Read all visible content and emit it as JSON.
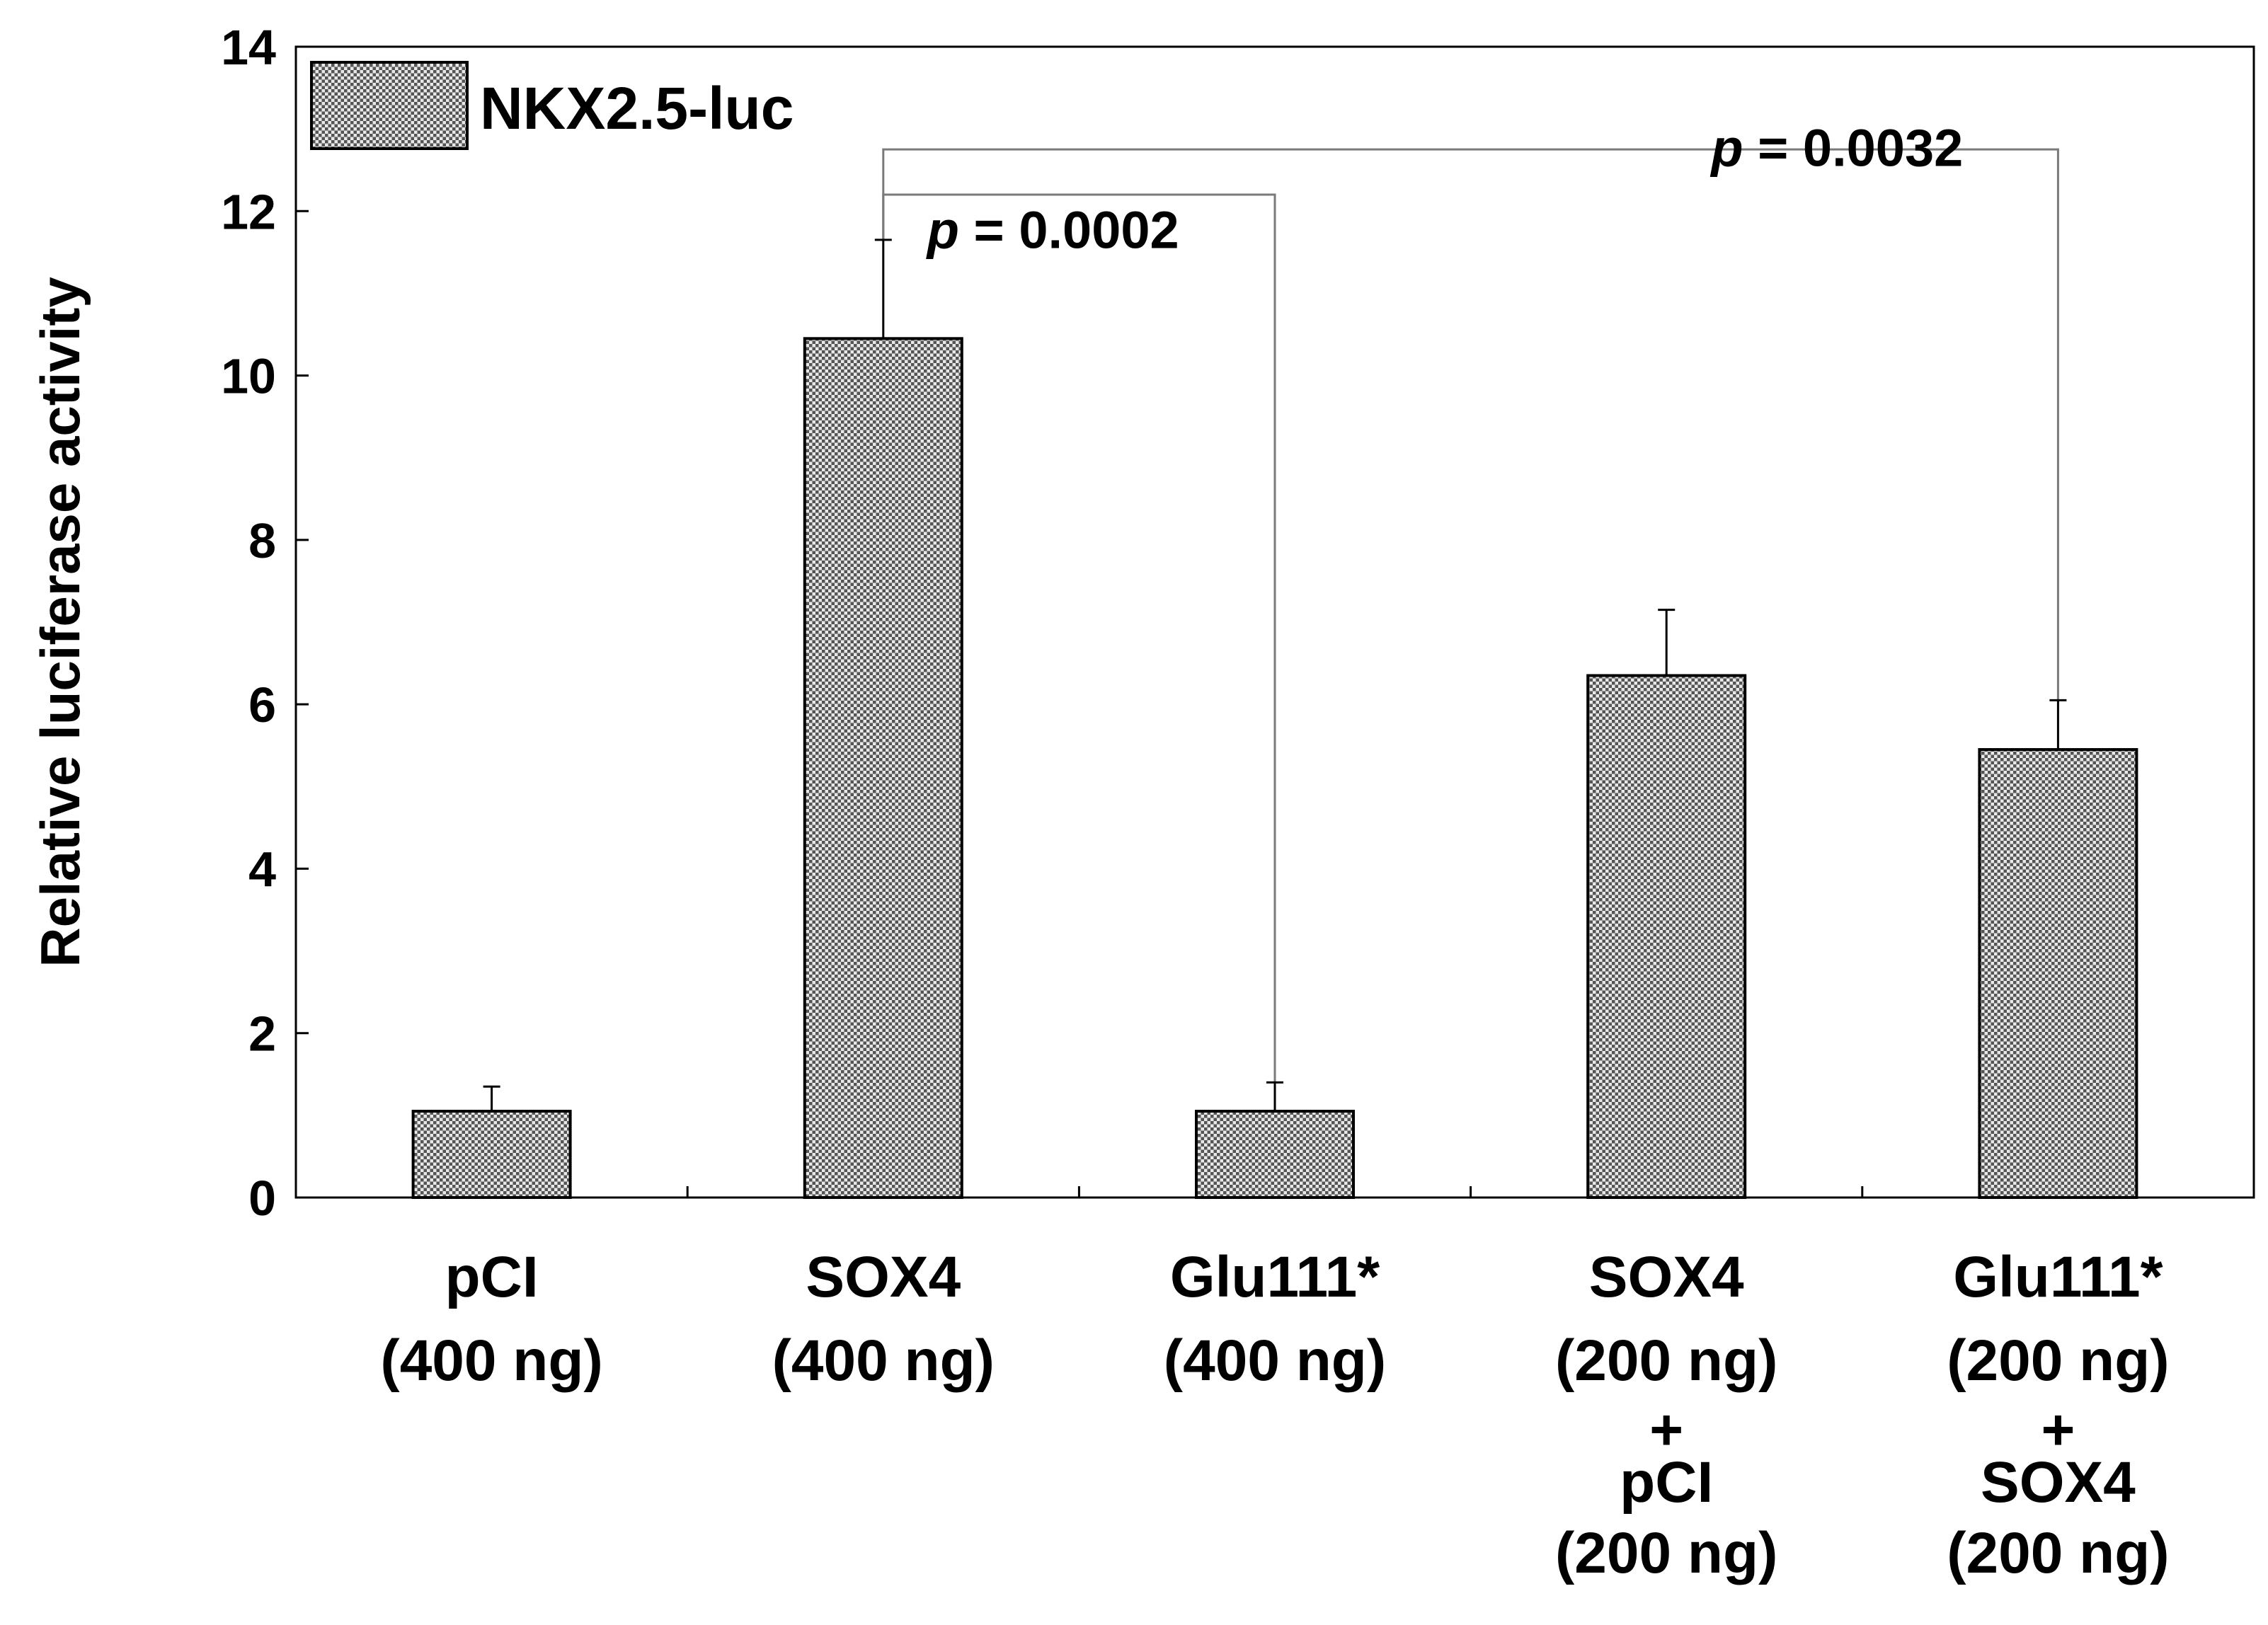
{
  "chart_data": {
    "type": "bar",
    "ylabel": "Relative luciferase activity",
    "ylim": [
      0,
      14
    ],
    "yticks": [
      "0",
      "2",
      "4",
      "6",
      "8",
      "10",
      "12",
      "14"
    ],
    "categories": [
      [
        "pCI",
        "(400 ng)"
      ],
      [
        "SOX4",
        "(400 ng)"
      ],
      [
        "Glu111*",
        "(400 ng)"
      ],
      [
        "SOX4",
        "(200 ng)",
        "+",
        "pCI",
        "(200 ng)"
      ],
      [
        "Glu111*",
        "(200 ng)",
        "+",
        "SOX4",
        "(200 ng)"
      ]
    ],
    "series": [
      {
        "name": "NKX2.5-luc",
        "values": [
          1.05,
          10.45,
          1.05,
          6.35,
          5.45
        ],
        "errors": [
          0.3,
          1.2,
          0.35,
          0.8,
          0.6
        ]
      }
    ],
    "legend": {
      "position": "top-left",
      "label": "NKX2.5-luc"
    },
    "annotations": [
      {
        "from": 1,
        "to": 2,
        "p_label": "p",
        "p_value": "= 0.0002"
      },
      {
        "from": 1,
        "to": 4,
        "p_label": "p",
        "p_value": "= 0.0032"
      }
    ],
    "colors": {
      "bar_fill": "#b8b8b8",
      "axis": "#000000",
      "bracket": "#7a7a7a"
    }
  }
}
